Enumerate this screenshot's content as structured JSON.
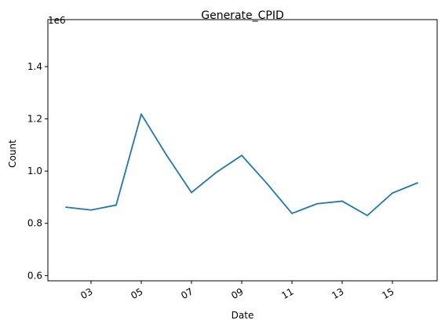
{
  "chart_data": {
    "type": "line",
    "title": "Generate_CPID",
    "xlabel": "Date",
    "ylabel": "Count",
    "offset_label": "1e6",
    "x": [
      "02",
      "03",
      "04",
      "05",
      "06",
      "07",
      "08",
      "09",
      "10",
      "11",
      "12",
      "13",
      "14",
      "15",
      "16"
    ],
    "xticks": [
      "03",
      "05",
      "07",
      "09",
      "11",
      "13",
      "15"
    ],
    "yticks": [
      "0.6",
      "0.8",
      "1.0",
      "1.2",
      "1.4"
    ],
    "ylim": [
      0.58,
      1.58
    ],
    "series": [
      {
        "color": "#1f77b4",
        "values": [
          0.862,
          0.851,
          0.87,
          1.218,
          1.062,
          0.918,
          0.996,
          1.06,
          0.953,
          0.838,
          0.875,
          0.885,
          0.83,
          0.916,
          0.955
        ]
      }
    ],
    "grid": false,
    "legend": "none"
  }
}
